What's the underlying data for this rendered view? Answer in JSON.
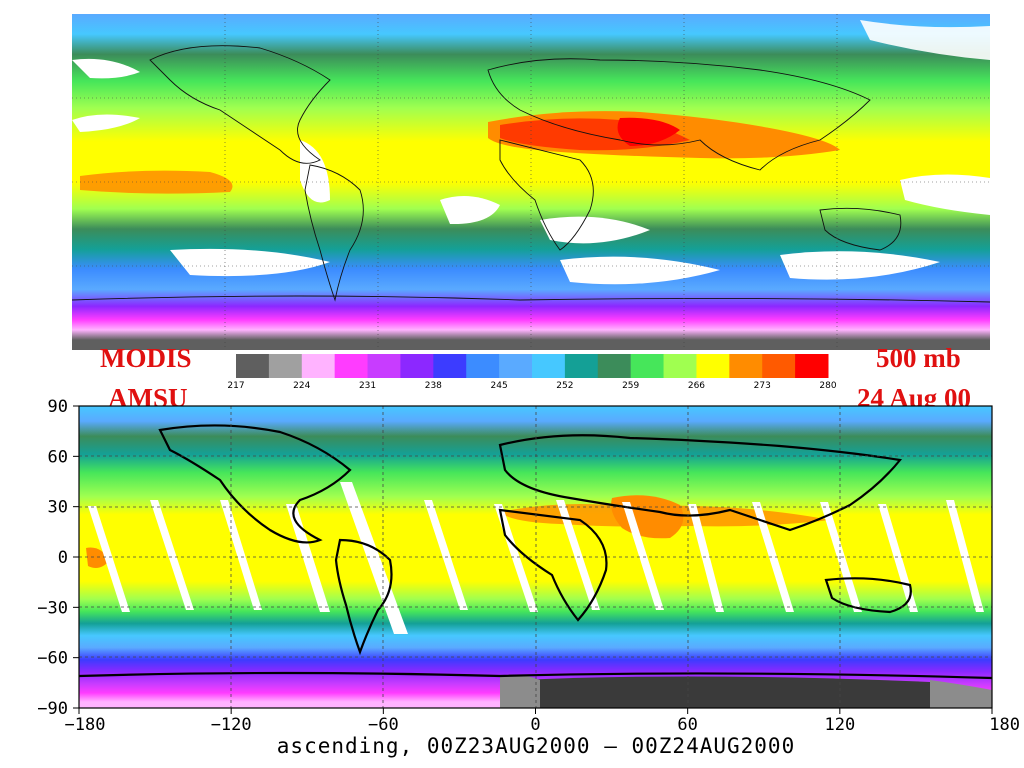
{
  "labels": {
    "instrument_line1": "MODIS",
    "instrument_line2": "AMSU",
    "level": "500 mb",
    "date": "24 Aug 00"
  },
  "colorbar": {
    "ticks": [
      "217",
      "224",
      "231",
      "238",
      "245",
      "252",
      "259",
      "266",
      "273",
      "280"
    ],
    "colors": [
      "#5f5f5f",
      "#a0a0a0",
      "#ffb3ff",
      "#ff3cff",
      "#c83cff",
      "#8c28ff",
      "#3c3cff",
      "#3c8cff",
      "#5aaaff",
      "#46c8ff",
      "#14a096",
      "#3c8c5a",
      "#46e65a",
      "#a0ff50",
      "#ffff00",
      "#ff8c00",
      "#ff5a00",
      "#ff0000"
    ]
  },
  "bottom_plot": {
    "y_ticks": [
      "90",
      "60",
      "30",
      "0",
      "−30",
      "−60",
      "−90"
    ],
    "x_ticks": [
      "−180",
      "−120",
      "−60",
      "0",
      "60",
      "120",
      "180"
    ],
    "caption": "ascending,  00Z23AUG2000  —  00Z24AUG2000"
  }
}
